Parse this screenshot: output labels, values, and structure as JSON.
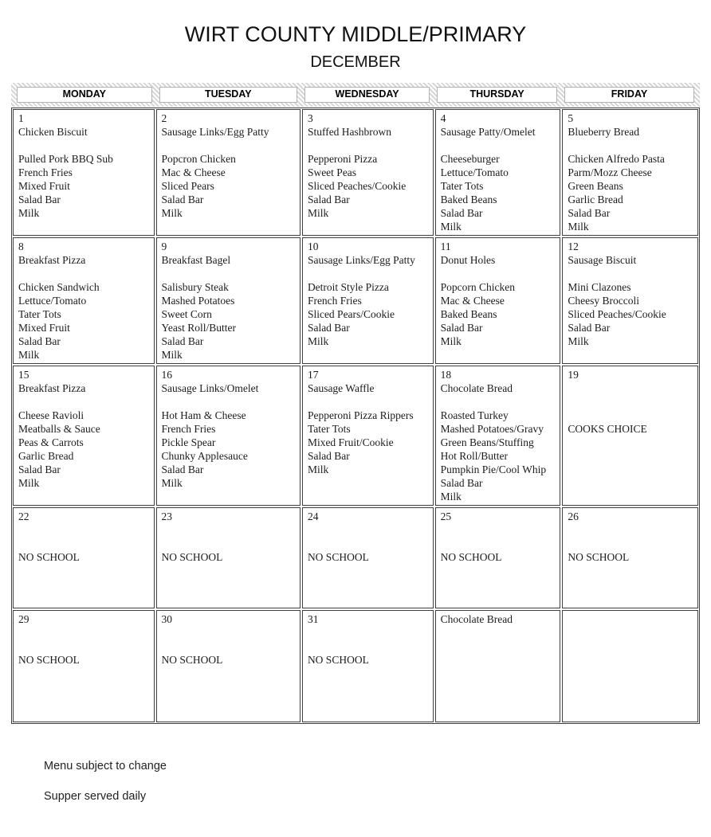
{
  "page": {
    "title": "WIRT COUNTY MIDDLE/PRIMARY",
    "subtitle": "DECEMBER"
  },
  "calendar": {
    "day_headers": [
      "MONDAY",
      "TUESDAY",
      "WEDNESDAY",
      "THURSDAY",
      "FRIDAY"
    ],
    "weeks": [
      {
        "cells": [
          [
            "1",
            "Chicken Biscuit",
            "",
            "Pulled Pork BBQ Sub",
            "French Fries",
            "Mixed Fruit",
            "Salad Bar",
            "Milk"
          ],
          [
            "2",
            "Sausage Links/Egg Patty",
            "",
            "Popcron Chicken",
            "Mac & Cheese",
            "Sliced Pears",
            "Salad Bar",
            "Milk"
          ],
          [
            "3",
            "Stuffed Hashbrown",
            "",
            "Pepperoni  Pizza",
            "Sweet Peas",
            "Sliced Peaches/Cookie",
            "Salad Bar",
            "Milk"
          ],
          [
            "4",
            "Sausage Patty/Omelet",
            "",
            "Cheeseburger",
            "Lettuce/Tomato",
            "Tater Tots",
            "Baked Beans",
            "Salad Bar",
            "Milk"
          ],
          [
            "5",
            "Blueberry Bread",
            "",
            "Chicken Alfredo Pasta",
            "Parm/Mozz Cheese",
            "Green Beans",
            "Garlic Bread",
            "Salad Bar",
            "Milk"
          ]
        ]
      },
      {
        "cells": [
          [
            "8",
            "Breakfast Pizza",
            "",
            "Chicken Sandwich",
            "Lettuce/Tomato",
            "Tater Tots",
            "Mixed Fruit",
            "Salad Bar",
            "Milk"
          ],
          [
            "9",
            "Breakfast Bagel",
            "",
            "Salisbury Steak",
            "Mashed Potatoes",
            "Sweet Corn",
            "Yeast Roll/Butter",
            "Salad Bar",
            "Milk"
          ],
          [
            "10",
            "Sausage Links/Egg Patty",
            "",
            "Detroit Style Pizza",
            "French Fries",
            "Sliced Pears/Cookie",
            "Salad Bar",
            "Milk"
          ],
          [
            "11",
            "Donut Holes",
            "",
            "Popcorn Chicken",
            "Mac & Cheese",
            "Baked Beans",
            "Salad Bar",
            "Milk"
          ],
          [
            "12",
            "Sausage Biscuit",
            "",
            "Mini Clazones",
            "Cheesy Broccoli",
            "Sliced Peaches/Cookie",
            "Salad Bar",
            "Milk"
          ]
        ]
      },
      {
        "cells": [
          [
            "15",
            "Breakfast Pizza",
            "",
            "Cheese Ravioli",
            "Meatballs & Sauce",
            "Peas & Carrots",
            "Garlic Bread",
            "Salad Bar",
            "Milk"
          ],
          [
            "16",
            "Sausage Links/Omelet",
            "",
            "Hot Ham & Cheese",
            "French Fries",
            "Pickle Spear",
            "Chunky Applesauce",
            "Salad Bar",
            "Milk"
          ],
          [
            "17",
            "Sausage Waffle",
            "",
            "Pepperoni Pizza Rippers",
            "Tater Tots",
            "Mixed Fruit/Cookie",
            "Salad Bar",
            "Milk"
          ],
          [
            "18",
            "Chocolate Bread",
            "",
            "Roasted Turkey",
            "Mashed Potatoes/Gravy",
            "Green Beans/Stuffing",
            "Hot Roll/Butter",
            "Pumpkin Pie/Cool Whip",
            "Salad Bar",
            "Milk"
          ],
          [
            "19",
            "",
            "",
            "",
            "COOKS CHOICE"
          ]
        ]
      },
      {
        "cells": [
          [
            "22",
            "",
            "",
            "NO SCHOOL"
          ],
          [
            "23",
            "",
            "",
            "NO SCHOOL"
          ],
          [
            "24",
            "",
            "",
            "NO SCHOOL"
          ],
          [
            "25",
            "",
            "",
            "NO SCHOOL"
          ],
          [
            "26",
            "",
            "",
            "NO SCHOOL"
          ]
        ]
      },
      {
        "cells": [
          [
            "29",
            "",
            "",
            "NO SCHOOL"
          ],
          [
            "30",
            "",
            "",
            "NO SCHOOL"
          ],
          [
            "31",
            "",
            "",
            "NO SCHOOL"
          ],
          [
            "Chocolate Bread"
          ],
          []
        ]
      }
    ]
  },
  "footer": {
    "line1": "Menu subject to change",
    "line2": "Supper served daily"
  }
}
